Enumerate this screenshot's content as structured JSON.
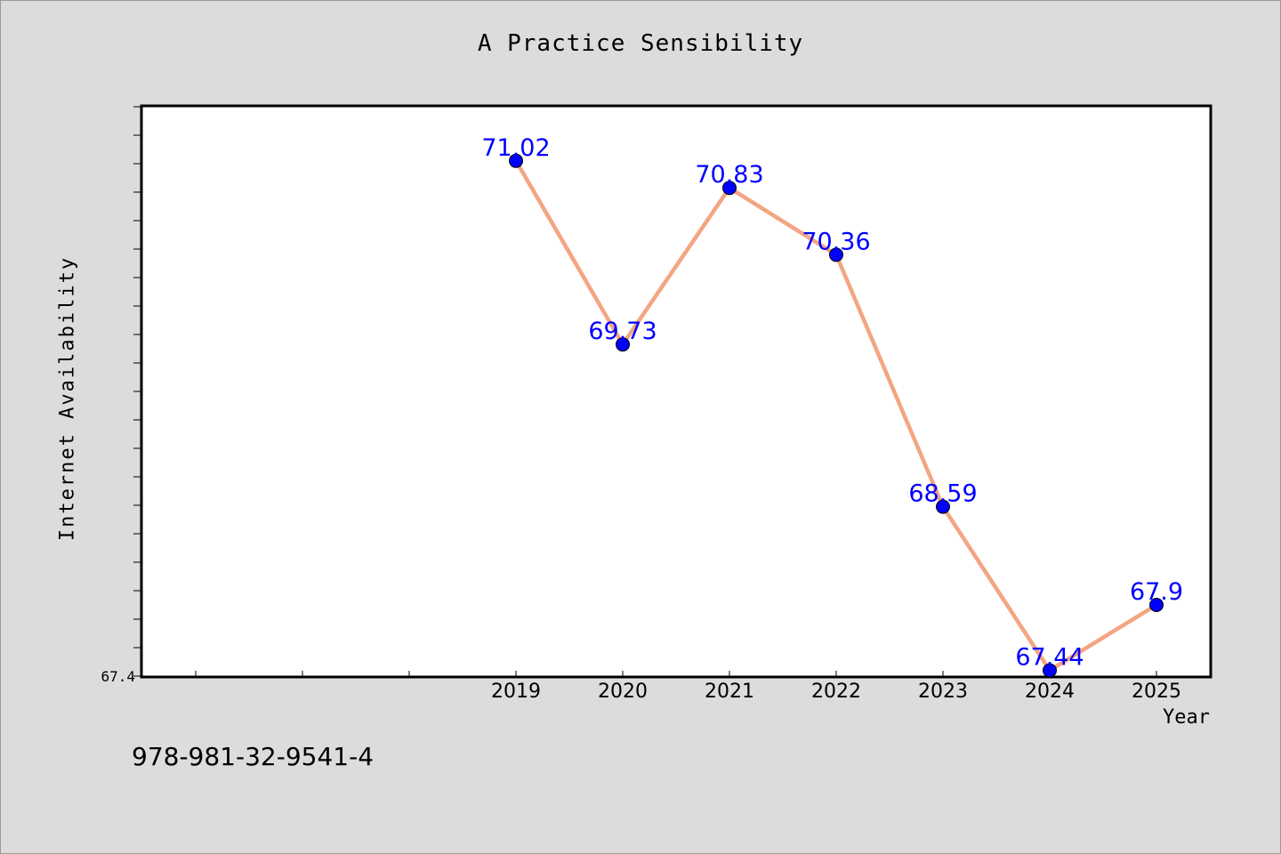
{
  "chart_data": {
    "type": "line",
    "title": "A Practice Sensibility",
    "xlabel": "Year",
    "ylabel": "Internet Availability",
    "x": [
      "2019",
      "2020",
      "2021",
      "2022",
      "2023",
      "2024",
      "2025"
    ],
    "x_range": [
      2015.5,
      2025.5
    ],
    "ylim": [
      67.4,
      71.4
    ],
    "y_tick_labels": [
      "67.4"
    ],
    "series": [
      {
        "values": [
          71.02,
          69.73,
          70.83,
          70.36,
          68.59,
          67.44,
          67.9
        ],
        "data_labels": [
          "71.02",
          "69.73",
          "70.83",
          "70.36",
          "68.59",
          "67.44",
          "67.9"
        ],
        "line_color": "#f4a582",
        "marker_color": "#0000ff",
        "label_color": "#0000ff"
      }
    ],
    "grid": false,
    "legend": "none"
  },
  "footer_text": "978-981-32-9541-4"
}
